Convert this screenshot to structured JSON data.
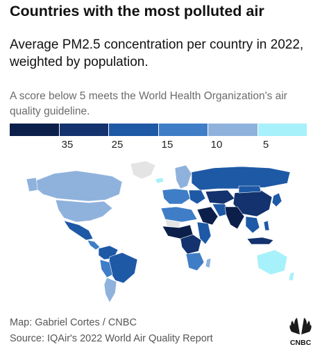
{
  "title": "Countries with the most polluted air",
  "subtitle": "Average PM2.5 concentration per country in 2022, weighted by population.",
  "note": "A score below 5 meets the World Health Organization's air quality guideline.",
  "legend": {
    "colors": [
      "#0b1f4a",
      "#13326e",
      "#1e59a6",
      "#3f7ec7",
      "#8fb2dd",
      "#a7f1fa"
    ],
    "ticks": [
      "35",
      "25",
      "15",
      "10",
      "5"
    ]
  },
  "map_colors": {
    "no_data": "#e4e4e4",
    "very_high": "#0b1f4a",
    "high": "#13326e",
    "mid": "#1e59a6",
    "moderate": "#3f7ec7",
    "low": "#8fb2dd",
    "guideline": "#a7f1fa"
  },
  "credit": {
    "map": "Map: Gabriel Cortes / CNBC",
    "source": "Source: IQAir's 2022 World Air Quality Report"
  },
  "logo": {
    "text": "CNBC",
    "petal_colors": [
      "#1a1a1a",
      "#1a1a1a",
      "#1a1a1a",
      "#1a1a1a",
      "#1a1a1a",
      "#1a1a1a"
    ]
  }
}
